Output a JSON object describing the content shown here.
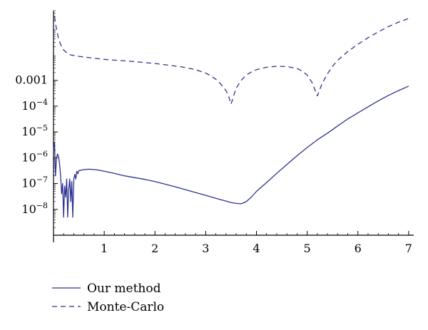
{
  "chart_data": {
    "type": "line",
    "title": "",
    "xlabel": "",
    "ylabel": "",
    "xlim": [
      0,
      7.1
    ],
    "ylim": [
      1e-09,
      0.5
    ],
    "y_scale": "log",
    "grid": false,
    "legend_position": "bottom-left",
    "x_ticks": [
      {
        "value": 1,
        "label": "1"
      },
      {
        "value": 2,
        "label": "2"
      },
      {
        "value": 3,
        "label": "3"
      },
      {
        "value": 4,
        "label": "4"
      },
      {
        "value": 5,
        "label": "5"
      },
      {
        "value": 6,
        "label": "6"
      },
      {
        "value": 7,
        "label": "7"
      }
    ],
    "y_ticks": [
      {
        "value": 0.001,
        "base": "0.001",
        "exp": ""
      },
      {
        "value": 0.0001,
        "base": "10",
        "exp": "−4"
      },
      {
        "value": 1e-05,
        "base": "10",
        "exp": "−5"
      },
      {
        "value": 1e-06,
        "base": "10",
        "exp": "−6"
      },
      {
        "value": 1e-07,
        "base": "10",
        "exp": "−7"
      },
      {
        "value": 1e-08,
        "base": "10",
        "exp": "−8"
      }
    ],
    "series": [
      {
        "name": "Our method",
        "style": "solid",
        "color": "#2e3192",
        "x": [
          0.0,
          0.02,
          0.04,
          0.06,
          0.08,
          0.1,
          0.12,
          0.14,
          0.16,
          0.18,
          0.2,
          0.22,
          0.24,
          0.26,
          0.28,
          0.3,
          0.32,
          0.34,
          0.36,
          0.38,
          0.4,
          0.42,
          0.44,
          0.46,
          0.48,
          0.5,
          0.55,
          0.6,
          0.65,
          0.7,
          0.8,
          0.9,
          1.0,
          1.2,
          1.4,
          1.6,
          1.8,
          2.0,
          2.2,
          2.4,
          2.6,
          2.8,
          3.0,
          3.2,
          3.4,
          3.5,
          3.6,
          3.7,
          3.8,
          3.9,
          4.0,
          4.2,
          4.4,
          4.6,
          4.8,
          5.0,
          5.2,
          5.4,
          5.6,
          5.8,
          6.0,
          6.2,
          6.4,
          6.6,
          6.8,
          7.0
        ],
        "y": [
          2e-06,
          4e-06,
          2e-07,
          1e-06,
          1.4e-06,
          1.1e-06,
          6e-07,
          2e-07,
          4e-08,
          1e-07,
          5e-09,
          8e-08,
          3e-08,
          1.5e-07,
          5e-09,
          6e-08,
          1.5e-07,
          2e-08,
          1.2e-07,
          5e-09,
          1.5e-07,
          2.3e-07,
          1.5e-07,
          3e-07,
          2.4e-07,
          3.2e-07,
          3.3e-07,
          3.5e-07,
          3.55e-07,
          3.6e-07,
          3.5e-07,
          3.3e-07,
          3e-07,
          2.5e-07,
          2e-07,
          1.7e-07,
          1.45e-07,
          1.2e-07,
          9.5e-08,
          7.5e-08,
          5.8e-08,
          4.5e-08,
          3.5e-08,
          2.7e-08,
          2.1e-08,
          1.85e-08,
          1.7e-08,
          1.65e-08,
          2e-08,
          3e-08,
          5e-08,
          1.1e-07,
          2.5e-07,
          5.5e-07,
          1.2e-06,
          2.5e-06,
          5e-06,
          9e-06,
          1.7e-05,
          3.2e-05,
          5.5e-05,
          9.5e-05,
          0.00016,
          0.00026,
          0.0004,
          0.0006
        ]
      },
      {
        "name": "Monte-Carlo",
        "style": "dashed",
        "color": "#2e3192",
        "x": [
          0.02,
          0.05,
          0.1,
          0.15,
          0.2,
          0.3,
          0.5,
          0.8,
          1.0,
          1.5,
          2.0,
          2.5,
          2.8,
          3.0,
          3.1,
          3.2,
          3.3,
          3.4,
          3.45,
          3.48,
          3.5,
          3.52,
          3.55,
          3.6,
          3.7,
          3.8,
          3.9,
          4.0,
          4.2,
          4.4,
          4.6,
          4.8,
          4.9,
          5.0,
          5.1,
          5.15,
          5.2,
          5.25,
          5.3,
          5.4,
          5.5,
          5.6,
          5.8,
          6.0,
          6.2,
          6.4,
          6.6,
          6.8,
          7.0
        ],
        "y": [
          0.3,
          0.12,
          0.04,
          0.022,
          0.015,
          0.01,
          0.0085,
          0.0072,
          0.0065,
          0.0055,
          0.0045,
          0.0034,
          0.0026,
          0.0019,
          0.0015,
          0.0011,
          0.0007,
          0.0004,
          0.00025,
          0.00016,
          0.00012,
          0.00016,
          0.00025,
          0.0005,
          0.001,
          0.0016,
          0.0021,
          0.0026,
          0.0032,
          0.0035,
          0.0034,
          0.0029,
          0.0023,
          0.0016,
          0.0008,
          0.00045,
          0.00025,
          0.00045,
          0.0008,
          0.0018,
          0.0035,
          0.006,
          0.013,
          0.025,
          0.045,
          0.075,
          0.12,
          0.18,
          0.25
        ]
      }
    ]
  }
}
